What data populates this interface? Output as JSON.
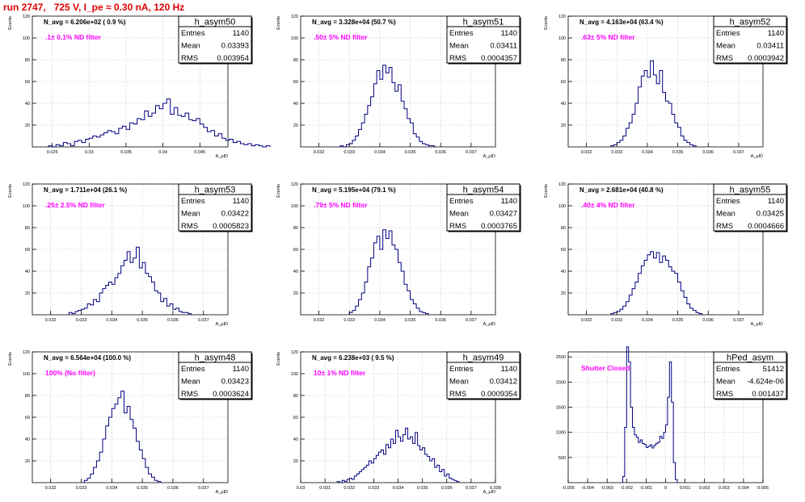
{
  "header": {
    "title": "run 2747,   725 V, I_pe ≈ 0.30 nA, 120 Hz"
  },
  "colors": {
    "histogram": "#000080",
    "title": "#e00000",
    "annotation": "#ff00ff",
    "grid": "#aaaaaa"
  },
  "chart_data": [
    {
      "type": "histogram",
      "name": "h_asym50",
      "navg": "N_avg = 6.206e+02 ( 0.9 %)",
      "annotation": ".1± 0.1% ND filter",
      "stats": [
        [
          "Entries",
          "1140"
        ],
        [
          "Mean",
          "0.03393"
        ],
        [
          "RMS",
          "0.003954"
        ]
      ],
      "ylabel": "Events",
      "xlabel": "A_μID",
      "xlim": [
        0.0223,
        0.0488
      ],
      "ylim": [
        0,
        120
      ],
      "xticks": [
        "0.025",
        "0.03",
        "0.035",
        "0.04",
        "0.045"
      ],
      "xtick_values": [
        0.025,
        0.03,
        0.035,
        0.04,
        0.045
      ],
      "yticks": [
        "20",
        "40",
        "60",
        "80",
        "100",
        "120"
      ],
      "bins_start": 0.0245,
      "bin_width": 0.0005,
      "values": [
        1,
        0,
        2,
        1,
        4,
        3,
        1,
        5,
        6,
        4,
        7,
        8,
        10,
        9,
        11,
        13,
        15,
        14,
        12,
        17,
        19,
        16,
        22,
        21,
        26,
        25,
        33,
        28,
        31,
        38,
        35,
        40,
        44,
        30,
        36,
        29,
        28,
        31,
        25,
        24,
        26,
        21,
        18,
        14,
        15,
        10,
        12,
        8,
        6,
        7,
        4,
        5,
        3,
        2,
        3,
        1,
        2,
        1,
        0,
        1
      ]
    },
    {
      "type": "histogram",
      "name": "h_asym51",
      "navg": "N_avg = 3.328e+04 (50.7 %)",
      "annotation": ".50± 5% ND filter",
      "stats": [
        [
          "Entries",
          "1140"
        ],
        [
          "Mean",
          "0.03411"
        ],
        [
          "RMS",
          "0.0004357"
        ]
      ],
      "ylabel": "Events",
      "xlabel": "A_μID",
      "xlim": [
        0.0314,
        0.0378
      ],
      "ylim": [
        0,
        120
      ],
      "xticks": [
        "0.032",
        "0.033",
        "0.034",
        "0.035",
        "0.036",
        "0.037"
      ],
      "xtick_values": [
        0.032,
        0.033,
        0.034,
        0.035,
        0.036,
        0.037
      ],
      "yticks": [
        "20",
        "40",
        "60",
        "80",
        "100",
        "120"
      ],
      "bins_start": 0.0327,
      "bin_width": 0.0001,
      "values": [
        1,
        0,
        2,
        3,
        6,
        10,
        16,
        22,
        30,
        38,
        46,
        58,
        70,
        62,
        75,
        68,
        73,
        59,
        51,
        57,
        42,
        35,
        26,
        22,
        12,
        9,
        5,
        3,
        2,
        1,
        1
      ]
    },
    {
      "type": "histogram",
      "name": "h_asym52",
      "navg": "N_avg = 4.163e+04 (63.4 %)",
      "annotation": ".63± 5% ND filter",
      "stats": [
        [
          "Entries",
          "1140"
        ],
        [
          "Mean",
          "0.03411"
        ],
        [
          "RMS",
          "0.0003942"
        ]
      ],
      "ylabel": "Events",
      "xlabel": "A_μID",
      "xlim": [
        0.0314,
        0.0378
      ],
      "ylim": [
        0,
        120
      ],
      "xticks": [
        "0.032",
        "0.033",
        "0.034",
        "0.035",
        "0.036",
        "0.037"
      ],
      "xtick_values": [
        0.032,
        0.033,
        0.034,
        0.035,
        0.036,
        0.037
      ],
      "yticks": [
        "20",
        "40",
        "60",
        "80",
        "100",
        "120"
      ],
      "bins_start": 0.0328,
      "bin_width": 0.0001,
      "values": [
        1,
        2,
        4,
        6,
        10,
        17,
        22,
        30,
        40,
        55,
        65,
        70,
        64,
        79,
        66,
        58,
        70,
        50,
        42,
        40,
        30,
        22,
        18,
        10,
        6,
        4,
        2,
        1
      ]
    },
    {
      "type": "histogram",
      "name": "h_asym53",
      "navg": "N_avg = 1.711e+04 (26.1 %)",
      "annotation": ".25± 2.5% ND filter",
      "stats": [
        [
          "Entries",
          "1140"
        ],
        [
          "Mean",
          "0.03422"
        ],
        [
          "RMS",
          "0.0005823"
        ]
      ],
      "ylabel": "Events",
      "xlabel": "A_μID",
      "xlim": [
        0.0314,
        0.0378
      ],
      "ylim": [
        0,
        120
      ],
      "xticks": [
        "0.032",
        "0.033",
        "0.034",
        "0.035",
        "0.036",
        "0.037"
      ],
      "xtick_values": [
        0.032,
        0.033,
        0.034,
        0.035,
        0.036,
        0.037
      ],
      "yticks": [
        "20",
        "40",
        "60",
        "80",
        "100",
        "120"
      ],
      "bins_start": 0.0326,
      "bin_width": 0.0001,
      "values": [
        2,
        1,
        3,
        4,
        5,
        6,
        10,
        9,
        14,
        12,
        20,
        24,
        27,
        30,
        28,
        34,
        38,
        45,
        50,
        58,
        48,
        52,
        62,
        43,
        48,
        38,
        35,
        30,
        22,
        20,
        12,
        15,
        8,
        10,
        5,
        6,
        3,
        2,
        2,
        1
      ]
    },
    {
      "type": "histogram",
      "name": "h_asym54",
      "navg": "N_avg = 5.195e+04 (79.1 %)",
      "annotation": ".79± 5% ND filter",
      "stats": [
        [
          "Entries",
          "1140"
        ],
        [
          "Mean",
          "0.03427"
        ],
        [
          "RMS",
          "0.0003765"
        ]
      ],
      "ylabel": "Events",
      "xlabel": "A_μID",
      "xlim": [
        0.0314,
        0.0378
      ],
      "ylim": [
        0,
        120
      ],
      "xticks": [
        "0.032",
        "0.033",
        "0.034",
        "0.035",
        "0.036",
        "0.037"
      ],
      "xtick_values": [
        0.032,
        0.033,
        0.034,
        0.035,
        0.036,
        0.037
      ],
      "yticks": [
        "20",
        "40",
        "60",
        "80",
        "100",
        "120"
      ],
      "bins_start": 0.033,
      "bin_width": 0.0001,
      "values": [
        2,
        4,
        8,
        14,
        20,
        30,
        44,
        52,
        66,
        72,
        60,
        78,
        70,
        77,
        64,
        60,
        48,
        40,
        28,
        22,
        14,
        10,
        6,
        3,
        2,
        1
      ]
    },
    {
      "type": "histogram",
      "name": "h_asym55",
      "navg": "N_avg = 2.681e+04 (40.8 %)",
      "annotation": ".40± 4% ND filter",
      "stats": [
        [
          "Entries",
          "1140"
        ],
        [
          "Mean",
          "0.03425"
        ],
        [
          "RMS",
          "0.0004666"
        ]
      ],
      "ylabel": "Events",
      "xlabel": "A_μID",
      "xlim": [
        0.0314,
        0.0378
      ],
      "ylim": [
        0,
        120
      ],
      "xticks": [
        "0.032",
        "0.033",
        "0.034",
        "0.035",
        "0.036",
        "0.037"
      ],
      "xtick_values": [
        0.032,
        0.033,
        0.034,
        0.035,
        0.036,
        0.037
      ],
      "yticks": [
        "20",
        "40",
        "60",
        "80",
        "100",
        "120"
      ],
      "bins_start": 0.0328,
      "bin_width": 0.0001,
      "values": [
        1,
        2,
        3,
        5,
        8,
        12,
        18,
        24,
        30,
        38,
        45,
        50,
        55,
        58,
        52,
        57,
        48,
        54,
        50,
        44,
        40,
        38,
        30,
        22,
        16,
        10,
        6,
        4,
        2,
        1
      ]
    },
    {
      "type": "histogram",
      "name": "h_asym48",
      "navg": "N_avg = 6.564e+04 (100.0 %)",
      "annotation": "100% (No filter)",
      "stats": [
        [
          "Entries",
          "1140"
        ],
        [
          "Mean",
          "0.03423"
        ],
        [
          "RMS",
          "0.0003624"
        ]
      ],
      "ylabel": "Events",
      "xlabel": "A_μID",
      "xlim": [
        0.0314,
        0.0378
      ],
      "ylim": [
        0,
        120
      ],
      "xticks": [
        "0.032",
        "0.033",
        "0.034",
        "0.035",
        "0.036",
        "0.037"
      ],
      "xtick_values": [
        0.032,
        0.033,
        0.034,
        0.035,
        0.036,
        0.037
      ],
      "yticks": [
        "20",
        "40",
        "60",
        "80",
        "100",
        "120"
      ],
      "bins_start": 0.0331,
      "bin_width": 0.0001,
      "values": [
        2,
        4,
        8,
        14,
        20,
        28,
        40,
        52,
        60,
        68,
        72,
        78,
        84,
        64,
        70,
        58,
        50,
        38,
        30,
        22,
        14,
        8,
        5,
        2,
        1
      ]
    },
    {
      "type": "histogram",
      "name": "h_asym49",
      "navg": "N_avg = 6.238e+03 ( 9.5 %)",
      "annotation": "10± 1% ND filter",
      "stats": [
        [
          "Entries",
          "1140"
        ],
        [
          "Mean",
          "0.03412"
        ],
        [
          "RMS",
          "0.0009354"
        ]
      ],
      "ylabel": "Events",
      "xlabel": "A_μID",
      "xlim": [
        0.03,
        0.038
      ],
      "ylim": [
        0,
        120
      ],
      "xticks": [
        "0.03",
        "0.031",
        "0.032",
        "0.033",
        "0.034",
        "0.035",
        "0.036",
        "0.037",
        "0.038"
      ],
      "xtick_values": [
        0.03,
        0.031,
        0.032,
        0.033,
        0.034,
        0.035,
        0.036,
        0.037,
        0.038
      ],
      "yticks": [
        "20",
        "40",
        "60",
        "80",
        "100",
        "120"
      ],
      "bins_start": 0.0315,
      "bin_width": 0.0001,
      "values": [
        1,
        0,
        2,
        1,
        3,
        4,
        3,
        6,
        8,
        10,
        12,
        14,
        16,
        20,
        18,
        22,
        25,
        28,
        30,
        26,
        35,
        32,
        40,
        36,
        48,
        42,
        38,
        44,
        50,
        40,
        42,
        36,
        46,
        34,
        30,
        32,
        26,
        24,
        20,
        22,
        14,
        16,
        10,
        12,
        6,
        8,
        4,
        3,
        2,
        1
      ]
    },
    {
      "type": "histogram",
      "name": "hPed_asym",
      "navg": "",
      "annotation": "Shutter Closed",
      "stats": [
        [
          "Entries",
          "51412"
        ],
        [
          "Mean",
          "-4.624e-06"
        ],
        [
          "RMS",
          "0.001437"
        ]
      ],
      "ylabel": "",
      "xlabel": "",
      "xlim": [
        -0.005,
        0.005
      ],
      "ylim": [
        0,
        2600
      ],
      "xticks": [
        "-0.005",
        "-0.004",
        "-0.003",
        "-0.002",
        "-0.001",
        "0",
        "0.001",
        "0.002",
        "0.003",
        "0.004",
        "0.005"
      ],
      "xtick_values": [
        -0.005,
        -0.004,
        -0.003,
        -0.002,
        -0.001,
        0,
        0.001,
        0.002,
        0.003,
        0.004,
        0.005
      ],
      "yticks": [
        "500",
        "1000",
        "1500",
        "2000",
        "2500"
      ],
      "ytick_values": [
        500,
        1000,
        1500,
        2000,
        2500
      ],
      "bins_start": -0.0022,
      "bin_width": 0.0001,
      "values": [
        120,
        1100,
        2700,
        2400,
        1500,
        1100,
        950,
        900,
        800,
        850,
        780,
        760,
        700,
        720,
        750,
        690,
        740,
        780,
        800,
        920,
        880,
        1000,
        1150,
        1700,
        2400,
        1600,
        400,
        60
      ]
    }
  ]
}
